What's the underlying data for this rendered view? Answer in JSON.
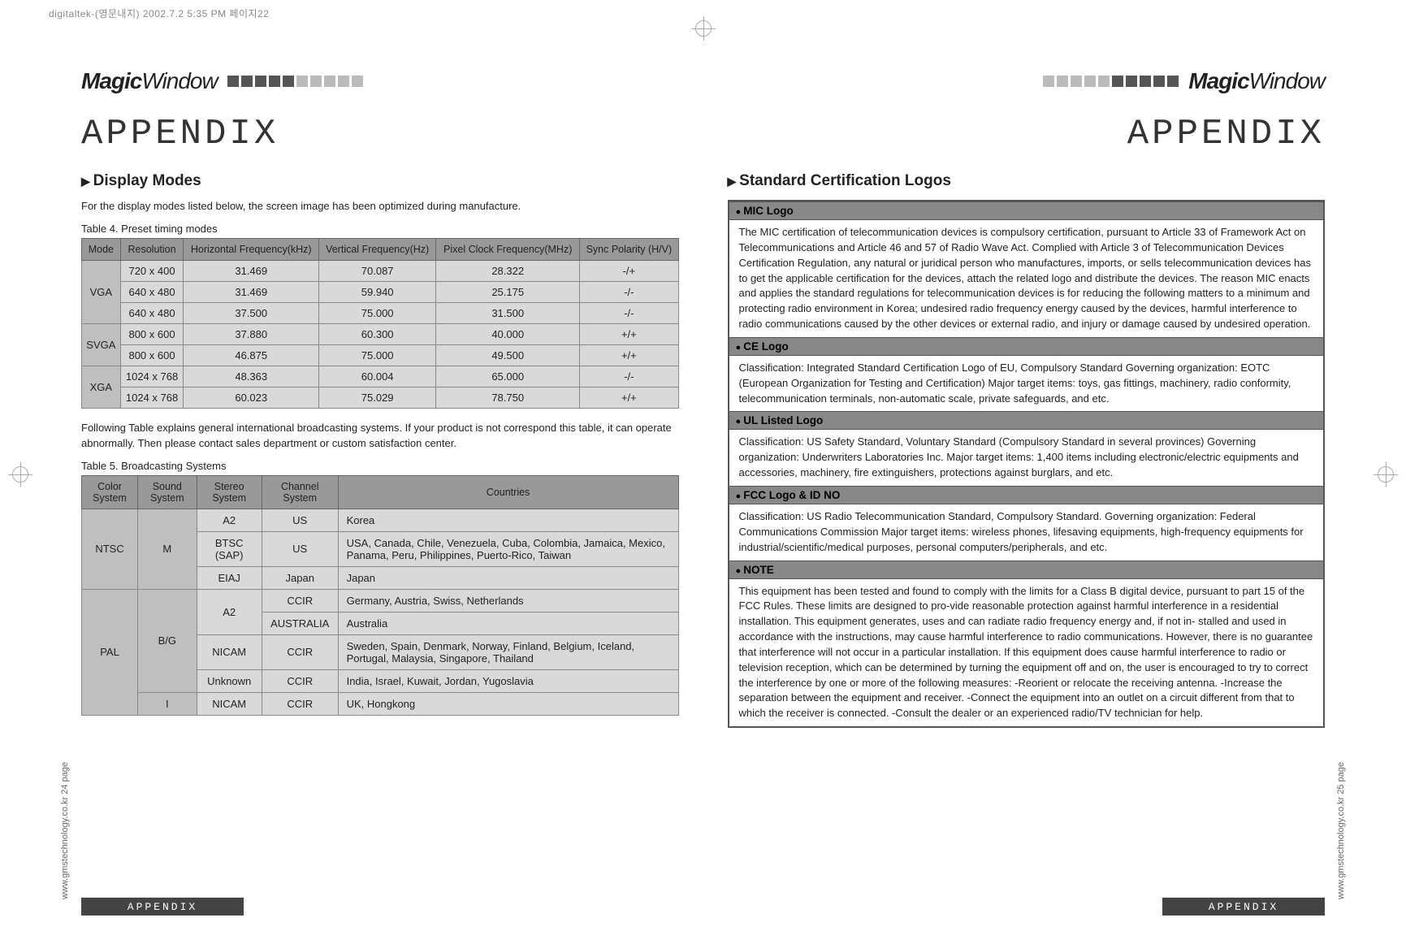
{
  "crop_header": "digitaltek-(영문내지) 2002.7.2 5:35 PM 페이지22",
  "brand_bold": "Magic",
  "brand_thin": "Window",
  "appendix": "APPENDIX",
  "footer": "APPENDIX",
  "side_left": "www.gmstechnology.co.kr  24 page",
  "side_right": "www.gmstechnology.co.kr  25 page",
  "left": {
    "section1": "Display Modes",
    "intro1": "For the display modes listed below, the screen image has been optimized during manufacture.",
    "caption1": "Table 4. Preset timing modes",
    "modes_headers": [
      "Mode",
      "Resolution",
      "Horizontal Frequency(kHz)",
      "Vertical Frequency(Hz)",
      "Pixel Clock Frequency(MHz)",
      "Sync Polarity (H/V)"
    ],
    "modes_rows": [
      {
        "mode": "VGA",
        "span": 3,
        "res": "720 x 400",
        "h": "31.469",
        "v": "70.087",
        "p": "28.322",
        "s": "-/+"
      },
      {
        "res": "640 x 480",
        "h": "31.469",
        "v": "59.940",
        "p": "25.175",
        "s": "-/-"
      },
      {
        "res": "640 x 480",
        "h": "37.500",
        "v": "75.000",
        "p": "31.500",
        "s": "-/-"
      },
      {
        "mode": "SVGA",
        "span": 2,
        "res": "800 x 600",
        "h": "37.880",
        "v": "60.300",
        "p": "40.000",
        "s": "+/+"
      },
      {
        "res": "800 x 600",
        "h": "46.875",
        "v": "75.000",
        "p": "49.500",
        "s": "+/+"
      },
      {
        "mode": "XGA",
        "span": 2,
        "res": "1024 x 768",
        "h": "48.363",
        "v": "60.004",
        "p": "65.000",
        "s": "-/-"
      },
      {
        "res": "1024 x 768",
        "h": "60.023",
        "v": "75.029",
        "p": "78.750",
        "s": "+/+"
      }
    ],
    "intro2": "Following Table explains general international broadcasting systems. If your product is not correspond this table, it can operate abnormally. Then please contact sales department or custom satisfaction center.",
    "caption2": "Table 5. Broadcasting Systems",
    "bcast_headers": [
      "Color System",
      "Sound System",
      "Stereo System",
      "Channel System",
      "Countries"
    ],
    "bcast_rows": [
      {
        "cs": "NTSC",
        "cs_span": 3,
        "ss": "M",
        "ss_span": 3,
        "st": "A2",
        "ch": "US",
        "co": "Korea"
      },
      {
        "st": "BTSC (SAP)",
        "ch": "US",
        "co": "USA, Canada, Chile, Venezuela, Cuba, Colombia, Jamaica, Mexico, Panama, Peru, Philippines, Puerto-Rico, Taiwan"
      },
      {
        "st": "EIAJ",
        "ch": "Japan",
        "co": "Japan"
      },
      {
        "cs": "PAL",
        "cs_span": 5,
        "ss": "B/G",
        "ss_span": 4,
        "st": "A2",
        "st_span": 2,
        "ch": "CCIR",
        "co": "Germany, Austria, Swiss, Netherlands"
      },
      {
        "ch": "AUSTRALIA",
        "co": "Australia"
      },
      {
        "st": "NICAM",
        "ch": "CCIR",
        "co": "Sweden, Spain, Denmark, Norway, Finland, Belgium, Iceland, Portugal, Malaysia, Singapore, Thailand"
      },
      {
        "st": "Unknown",
        "ch": "CCIR",
        "co": "India, Israel, Kuwait, Jordan, Yugoslavia"
      },
      {
        "ss": "I",
        "ss_span": 1,
        "st": "NICAM",
        "ch": "CCIR",
        "co": "UK, Hongkong"
      }
    ]
  },
  "right": {
    "section": "Standard Certification Logos",
    "items": [
      {
        "head": "MIC Logo",
        "body": "The MIC certification of telecommunication devices is compulsory certification, pursuant to Article 33 of Framework Act on Telecommunications and Article 46 and 57 of Radio Wave Act. Complied with Article 3 of Telecommunication Devices Certification Regulation, any natural or juridical person who manufactures, imports, or sells telecommunication devices has to get the applicable certification for the devices, attach the related logo and distribute the devices. The reason MIC enacts and applies the standard regulations for telecommunication devices is for reducing the following matters to a minimum and protecting radio environment in Korea; undesired radio frequency energy caused by the devices, harmful interference to radio communications caused by the other devices or external radio, and injury or damage caused by undesired operation."
      },
      {
        "head": "CE Logo",
        "body": "Classification: Integrated Standard Certification Logo of EU, Compulsory Standard\nGoverning organization: EOTC (European Organization for Testing and Certification)\nMajor target items: toys, gas fittings, machinery, radio conformity, telecommunication terminals, non-automatic scale, private safeguards, and etc."
      },
      {
        "head": "UL Listed Logo",
        "body": "Classification: US Safety Standard, Voluntary Standard (Compulsory Standard in several provinces)\nGoverning organization: Underwriters Laboratories Inc.\nMajor target items: 1,400 items including electronic/electric equipments and accessories, machinery, fire extinguishers, protections against burglars, and etc."
      },
      {
        "head": "FCC Logo & ID NO",
        "body": "Classification: US Radio Telecommunication Standard, Compulsory Standard.\nGoverning organization: Federal Communications Commission\n Major target items: wireless phones, lifesaving equipments, high-frequency equipments for industrial/scientific/medical purposes, personal computers/peripherals, and etc."
      },
      {
        "head": "NOTE",
        "body": "This equipment has been tested and found to comply with the limits for a Class B   digital device, pursuant to part 15 of the FCC Rules. These limits are designed to pro-vide  reasonable protection against harmful interference in a residential installation.  This equipment generates, uses and can radiate radio frequency energy and, if not in-  stalled and used in accordance with the instructions, may cause harmful interference to   radio communications. However, there is no guarantee that interference will not occur in a   particular installation. If this equipment does cause harmful interference to radio or   television reception, which can be determined by turning the equipment off and on, the   user is encouraged to try to correct the interference by one or more of the following   measures:  -Reorient or relocate the receiving antenna.  -Increase the separation between the equipment and receiver.  -Connect the equipment into an outlet on a circuit different from that to which the receiver   is connected.  -Consult the dealer or an experienced radio/TV technician for help."
      }
    ]
  },
  "colors": {
    "header_bg": "#999999",
    "cell_bg": "#d9d9d9",
    "mode_bg": "#bfbfbf",
    "border": "#666666",
    "footer_bg": "#444444",
    "cert_head_bg": "#888888"
  }
}
